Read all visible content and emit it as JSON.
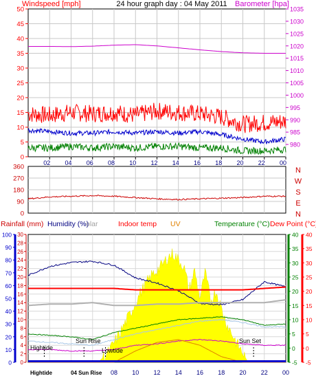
{
  "header": {
    "wind_label": "Windspeed [mph]",
    "title": "24 hour graph day : 04 May 2011",
    "baro_label": "Barometer [hpa]"
  },
  "legend": {
    "rainfall": "Rainfall (mm)",
    "humidity": "Humidity (%)",
    "solar": "olar",
    "indoor": "Indoor temp",
    "uv": "UV",
    "temperature": "Temperature (°C)",
    "dewpoint": "Dew Point (°C)"
  },
  "annotations": {
    "hightide_top": "Hightide",
    "sunrise_top": "Sun Rise",
    "lowtide_top": "Lowtide",
    "sunset_top": "Sun Set",
    "hightide_bot": "Hightide",
    "sunrise_bot": "04 Sun Rise"
  },
  "colors": {
    "wind_avg": "#0000cc",
    "wind_gust": "#ff0000",
    "wind_low": "#008000",
    "barometer": "#cc00cc",
    "direction": "#cc0000",
    "rainfall": "#0000cc",
    "humidity": "#000080",
    "solar": "#ffff00",
    "indoor": "#ff0000",
    "uv": "#e08000",
    "temperature": "#008000",
    "dewpoint": "#ff0000",
    "grey_line": "#b0b0b0",
    "lightblue_line": "#a8c8e8",
    "magenta_line": "#cc00cc"
  },
  "chart_data": [
    {
      "type": "line",
      "title": "24 hour graph day : 04 May 2011",
      "xlabel": "",
      "ylabel": "Windspeed [mph]",
      "y2label": "Barometer [hpa]",
      "ylim": [
        0,
        50
      ],
      "y2lim": [
        975,
        1035
      ],
      "x_ticks": [
        "02",
        "04",
        "06",
        "08",
        "10",
        "12",
        "14",
        "16",
        "18",
        "20",
        "22",
        "00"
      ],
      "y_ticks": [
        0,
        5,
        10,
        15,
        20,
        25,
        30,
        35,
        40,
        45,
        50
      ],
      "y2_ticks": [
        980,
        985,
        990,
        995,
        1000,
        1005,
        1010,
        1015,
        1020,
        1025,
        1030,
        1035
      ],
      "x_hours": [
        0,
        2,
        4,
        6,
        8,
        10,
        12,
        14,
        16,
        18,
        20,
        22,
        24
      ],
      "series": [
        {
          "color_key": "barometer",
          "axis": "right",
          "values": [
            1019.8,
            1019.8,
            1019.7,
            1019.9,
            1020.3,
            1020.5,
            1020.0,
            1019.2,
            1018.4,
            1017.7,
            1017.2,
            1017.0,
            1017.0
          ]
        },
        {
          "color_key": "wind_gust",
          "axis": "left",
          "values": [
            14.5,
            14.0,
            15.0,
            14.5,
            15.0,
            14.0,
            15.5,
            15.0,
            14.5,
            13.5,
            11.0,
            11.5,
            12.0
          ]
        },
        {
          "color_key": "wind_avg",
          "axis": "left",
          "values": [
            9.0,
            8.5,
            8.0,
            8.0,
            8.5,
            8.0,
            8.5,
            8.0,
            8.5,
            7.5,
            6.0,
            5.0,
            6.0
          ]
        },
        {
          "color_key": "wind_low",
          "axis": "left",
          "values": [
            3.0,
            3.0,
            3.5,
            3.0,
            3.5,
            3.0,
            3.5,
            3.5,
            3.0,
            3.0,
            2.0,
            2.0,
            2.5
          ]
        }
      ]
    },
    {
      "type": "line",
      "title": "",
      "ylabel": "",
      "ylim": [
        0,
        360
      ],
      "y_ticks": [
        0,
        90,
        180,
        270,
        360
      ],
      "y2_labels": [
        "N",
        "W",
        "S",
        "E",
        "N"
      ],
      "x_hours": [
        0,
        2,
        4,
        6,
        8,
        10,
        12,
        14,
        16,
        18,
        20,
        22,
        24
      ],
      "series": [
        {
          "color_key": "direction",
          "values": [
            110,
            125,
            130,
            135,
            130,
            120,
            110,
            105,
            110,
            115,
            120,
            130,
            130
          ]
        }
      ]
    },
    {
      "type": "line",
      "title": "",
      "xlabel": "",
      "ylabel_rain": "Rainfall (mm)",
      "ylabel_humidity": "Humidity (%)",
      "ylabel_temp": "Temperature (°C)",
      "ylabel_dew": "Dew Point (°C)",
      "humidity_ticks": [
        0,
        10,
        20,
        30,
        40,
        50,
        60,
        70,
        80,
        90,
        100
      ],
      "rain_ticks": [
        0,
        2,
        4,
        6,
        8,
        10,
        12,
        14,
        16,
        18,
        20,
        22,
        24,
        26,
        28,
        30
      ],
      "temp_ticks": [
        -5,
        0,
        5,
        10,
        15,
        20,
        25,
        30,
        35,
        40
      ],
      "dew_ticks": [
        -5,
        0,
        5,
        10,
        15,
        20,
        25,
        30,
        35,
        40
      ],
      "x_labels": [
        "Hightide",
        "04 Sun Rise",
        "08",
        "10",
        "12",
        "14",
        "16",
        "18",
        "20",
        "22",
        "00"
      ],
      "x_label_hours": [
        1.5,
        4.7,
        8,
        10,
        12,
        14,
        16,
        18,
        20,
        22,
        24
      ],
      "x_hours": [
        0,
        2,
        4,
        6,
        8,
        10,
        12,
        14,
        16,
        18,
        20,
        22,
        24
      ],
      "series": [
        {
          "color_key": "humidity",
          "axis": "humidity",
          "values": [
            68,
            75,
            78,
            79,
            76,
            66,
            62,
            56,
            46,
            45,
            49,
            63,
            59
          ]
        },
        {
          "color_key": "indoor",
          "axis": "temp",
          "values": [
            21.0,
            21.0,
            21.0,
            21.0,
            21.0,
            20.5,
            20.5,
            20.5,
            20.5,
            20.5,
            20.5,
            21.0,
            21.5
          ]
        },
        {
          "color_key": "grey_line",
          "axis": "temp",
          "values": [
            15.0,
            15.5,
            15.5,
            16.0,
            15.0,
            15.0,
            15.5,
            15.5,
            16.0,
            16.0,
            16.0,
            16.0,
            17.0
          ]
        },
        {
          "color_key": "temperature",
          "axis": "temp",
          "values": [
            5.0,
            4.5,
            4.0,
            3.0,
            5.5,
            7.0,
            8.5,
            10.0,
            10.5,
            11.0,
            10.0,
            8.0,
            8.5
          ]
        },
        {
          "color_key": "lightblue_line",
          "axis": "temp",
          "values": [
            2.5,
            2.0,
            1.5,
            1.0,
            3.0,
            5.0,
            6.5,
            8.0,
            9.5,
            10.0,
            9.0,
            7.5,
            7.5
          ]
        },
        {
          "color_key": "magenta_line",
          "axis": "temp",
          "values": [
            -0.5,
            -0.5,
            -1.0,
            -1.0,
            -0.5,
            1.0,
            1.5,
            2.5,
            3.0,
            2.5,
            1.5,
            1.0,
            1.0
          ]
        },
        {
          "color_key": "uv",
          "axis": "temp",
          "values": [
            -5,
            -5,
            -5,
            -5,
            -5,
            -1,
            2,
            3,
            1,
            -3,
            -5,
            -5,
            -5
          ]
        },
        {
          "color_key": "rainfall",
          "axis": "rain",
          "values": [
            0,
            0,
            0,
            0,
            0,
            0,
            0,
            0,
            0,
            0,
            0,
            0,
            0
          ]
        }
      ],
      "solar_hours": [
        6.5,
        7.5,
        8.5,
        9.5,
        10.5,
        11.5,
        12.5,
        13.0,
        13.5,
        14.0,
        14.5,
        15.0,
        15.5,
        16.0,
        16.5,
        17.0,
        17.5,
        18.0,
        18.5,
        19.5,
        20.5
      ],
      "solar_percent": [
        0,
        8,
        22,
        38,
        55,
        68,
        76,
        82,
        85,
        80,
        75,
        56,
        72,
        50,
        70,
        48,
        56,
        42,
        30,
        14,
        0
      ]
    }
  ]
}
